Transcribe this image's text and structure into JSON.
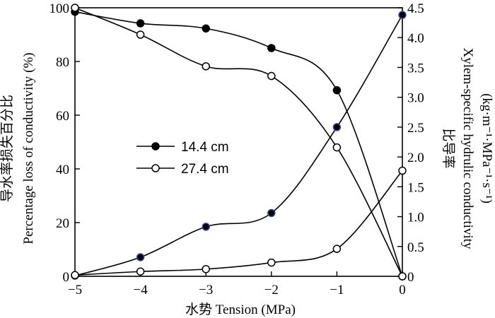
{
  "chart_data": {
    "type": "line",
    "x_label": "水势 Tension (MPa)",
    "y_left_label_cn": "导水率损失百分比",
    "y_left_label_en": "Percentage loss of conductivity (%)",
    "y_right_label_cn": "比导率",
    "y_right_label_en": "Xylem-specific hydrulic conductivity",
    "y_right_unit": "(kg·m⁻¹·MPa⁻¹·s⁻¹)",
    "xlim": [
      -5,
      0
    ],
    "x_ticks": [
      -5,
      -4,
      -3,
      -2,
      -1,
      0
    ],
    "x_tick_labels": [
      "−5",
      "−4",
      "−3",
      "−2",
      "−1",
      "0"
    ],
    "ylim_left": [
      0,
      100
    ],
    "y_left_ticks": [
      0,
      20,
      40,
      60,
      80,
      100
    ],
    "y_left_tick_labels": [
      "0",
      "20",
      "40",
      "60",
      "80",
      "100"
    ],
    "ylim_right": [
      0,
      4.5
    ],
    "y_right_ticks": [
      0,
      0.5,
      1.0,
      1.5,
      2.0,
      2.5,
      3.0,
      3.5,
      4.0,
      4.5
    ],
    "y_right_tick_labels": [
      "0",
      "0.5",
      "1.0",
      "1.5",
      "2.0",
      "2.5",
      "3.0",
      "3.5",
      "4.0",
      "4.5"
    ],
    "legend": {
      "placement": "center-left",
      "entries": [
        {
          "label": "14.4 cm",
          "marker": "filled"
        },
        {
          "label": "27.4 cm",
          "marker": "open"
        }
      ]
    },
    "series": [
      {
        "axis": "left",
        "marker": "filled",
        "x": [
          -5,
          -4,
          -3,
          -2,
          -1,
          0
        ],
        "y": [
          98.5,
          94.2,
          92.3,
          85.0,
          69.3,
          0
        ]
      },
      {
        "axis": "left",
        "marker": "open",
        "x": [
          -5,
          -4,
          -3,
          -2,
          -1,
          0
        ],
        "y": [
          100,
          90.0,
          78.2,
          74.6,
          48.0,
          0
        ]
      },
      {
        "axis": "right",
        "marker": "filled-blue",
        "x": [
          -5,
          -4,
          -3,
          -2,
          -1,
          0
        ],
        "y": [
          0.01,
          0.32,
          0.83,
          1.06,
          2.5,
          4.38
        ]
      },
      {
        "axis": "right",
        "marker": "open",
        "x": [
          -5,
          -4,
          -3,
          -2,
          -1,
          0
        ],
        "y": [
          0.02,
          0.08,
          0.12,
          0.23,
          0.46,
          1.77
        ]
      }
    ],
    "colors": {
      "line": "#000000",
      "marker_fill": "#000000",
      "marker_edge_blue": "#3b4aa0",
      "background": "#ffffff"
    }
  }
}
